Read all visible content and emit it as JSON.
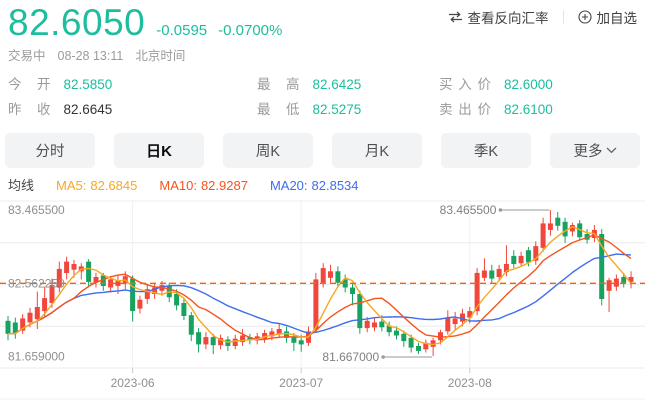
{
  "header": {
    "price": "82.6050",
    "change": "-0.0595",
    "change_pct": "-0.0700%",
    "reverse_rate_label": "查看反向汇率",
    "add_watch_label": "加自选",
    "status": "交易中",
    "datetime": "08-28 13:11",
    "timezone": "北京时间"
  },
  "stats": [
    {
      "label": "今　开",
      "value": "82.5850"
    },
    {
      "label": "最　高",
      "value": "82.6425"
    },
    {
      "label": "买 入 价",
      "value": "82.6000"
    },
    {
      "label": "昨　收",
      "value": "82.6645"
    },
    {
      "label": "最　低",
      "value": "82.5275"
    },
    {
      "label": "卖 出 价",
      "value": "82.6100"
    }
  ],
  "tabs": [
    {
      "label": "分时",
      "active": false
    },
    {
      "label": "日K",
      "active": true
    },
    {
      "label": "周K",
      "active": false
    },
    {
      "label": "月K",
      "active": false
    },
    {
      "label": "季K",
      "active": false
    },
    {
      "label": "更多",
      "active": false,
      "has_chevron": true
    }
  ],
  "ma_legend": {
    "title": "均线",
    "items": [
      {
        "label": "MA5:",
        "value": "82.6845",
        "color": "#f7a823"
      },
      {
        "label": "MA10:",
        "value": "82.9287",
        "color": "#f4541d"
      },
      {
        "label": "MA20:",
        "value": "82.8534",
        "color": "#3e6ef0"
      }
    ]
  },
  "colors": {
    "price_green": "#1dbd9e",
    "up": "#f0463c",
    "down": "#16a35f",
    "ma5": "#f7a823",
    "ma10": "#f4541d",
    "ma20": "#3e6ef0",
    "current_line": "#ff6000",
    "grid": "#ececec",
    "axis_text": "#8f8f8f"
  },
  "chart_data": {
    "type": "candlestick",
    "title": "日K candlestick chart with MA5/MA10/MA20 overlays",
    "y_axis_labels": [
      {
        "text": "83.465500",
        "value": 83.4655
      },
      {
        "text": "82.562250",
        "value": 82.56225
      },
      {
        "text": "81.659000",
        "value": 81.659
      }
    ],
    "x_axis_labels": [
      {
        "text": "2023-06",
        "candle_index": 17
      },
      {
        "text": "2023-07",
        "candle_index": 40
      },
      {
        "text": "2023-08",
        "candle_index": 63
      }
    ],
    "y_range": [
      81.659,
      83.4655
    ],
    "current_price_line_value": 82.56225,
    "annotations": [
      {
        "text": "83.465500",
        "value": 83.4655,
        "candle_index": 74,
        "anchor": "high"
      },
      {
        "text": "81.667000",
        "value": 81.667,
        "candle_index": 58,
        "anchor": "low"
      }
    ],
    "candles_ohlc": [
      [
        82.1,
        82.16,
        81.86,
        81.94
      ],
      [
        82.08,
        82.14,
        81.88,
        81.95
      ],
      [
        81.98,
        82.18,
        81.94,
        82.13
      ],
      [
        82.08,
        82.26,
        82.02,
        82.2
      ],
      [
        82.12,
        82.46,
        82.0,
        82.27
      ],
      [
        82.22,
        82.52,
        82.14,
        82.38
      ],
      [
        82.32,
        82.62,
        82.26,
        82.54
      ],
      [
        82.51,
        82.83,
        82.45,
        82.74
      ],
      [
        82.69,
        82.89,
        82.61,
        82.83
      ],
      [
        82.73,
        82.85,
        82.63,
        82.8
      ],
      [
        82.71,
        82.81,
        82.61,
        82.77
      ],
      [
        82.83,
        82.86,
        82.51,
        82.58
      ],
      [
        82.57,
        82.69,
        82.51,
        82.64
      ],
      [
        82.66,
        82.69,
        82.47,
        82.53
      ],
      [
        82.51,
        82.65,
        82.45,
        82.61
      ],
      [
        82.53,
        82.67,
        82.43,
        82.59
      ],
      [
        82.56,
        82.71,
        82.49,
        82.65
      ],
      [
        82.62,
        82.66,
        82.09,
        82.22
      ],
      [
        82.25,
        82.41,
        82.19,
        82.36
      ],
      [
        82.37,
        82.56,
        82.31,
        82.49
      ],
      [
        82.43,
        82.57,
        82.37,
        82.51
      ],
      [
        82.47,
        82.59,
        82.41,
        82.54
      ],
      [
        82.53,
        82.57,
        82.33,
        82.39
      ],
      [
        82.43,
        82.49,
        82.23,
        82.29
      ],
      [
        82.32,
        82.37,
        82.11,
        82.16
      ],
      [
        82.17,
        82.21,
        81.85,
        81.93
      ],
      [
        81.96,
        82.01,
        81.71,
        81.81
      ],
      [
        81.81,
        81.96,
        81.75,
        81.9
      ],
      [
        81.9,
        81.94,
        81.69,
        81.8
      ],
      [
        81.8,
        81.93,
        81.75,
        81.89
      ],
      [
        81.87,
        81.91,
        81.73,
        81.79
      ],
      [
        81.79,
        81.93,
        81.75,
        81.88
      ],
      [
        81.84,
        82.0,
        81.79,
        81.92
      ],
      [
        81.9,
        81.94,
        81.81,
        81.86
      ],
      [
        81.86,
        81.95,
        81.81,
        81.91
      ],
      [
        81.88,
        81.99,
        81.83,
        81.95
      ],
      [
        81.91,
        82.01,
        81.86,
        81.97
      ],
      [
        81.94,
        82.07,
        81.89,
        82.0
      ],
      [
        81.97,
        82.03,
        81.83,
        81.89
      ],
      [
        81.91,
        81.95,
        81.73,
        81.83
      ],
      [
        81.86,
        81.93,
        81.72,
        81.81
      ],
      [
        81.83,
        82.03,
        81.79,
        81.97
      ],
      [
        81.99,
        82.69,
        81.95,
        82.61
      ],
      [
        82.57,
        82.81,
        82.51,
        82.75
      ],
      [
        82.63,
        82.79,
        82.57,
        82.71
      ],
      [
        82.71,
        82.77,
        82.51,
        82.57
      ],
      [
        82.61,
        82.67,
        82.45,
        82.51
      ],
      [
        82.51,
        82.57,
        82.29,
        82.43
      ],
      [
        82.43,
        82.47,
        81.94,
        82.01
      ],
      [
        82.01,
        82.15,
        81.96,
        82.1
      ],
      [
        82.02,
        82.13,
        81.97,
        82.08
      ],
      [
        82.09,
        82.17,
        81.97,
        82.02
      ],
      [
        82.04,
        82.09,
        81.91,
        81.96
      ],
      [
        81.98,
        82.03,
        81.87,
        81.92
      ],
      [
        81.94,
        81.98,
        81.78,
        81.85
      ],
      [
        81.89,
        81.93,
        81.71,
        81.77
      ],
      [
        81.79,
        81.83,
        81.69,
        81.73
      ],
      [
        81.75,
        81.87,
        81.71,
        81.83
      ],
      [
        81.78,
        81.89,
        81.667,
        81.86
      ],
      [
        81.86,
        81.99,
        81.81,
        81.96
      ],
      [
        81.97,
        82.23,
        81.93,
        82.14
      ],
      [
        82.06,
        82.21,
        81.99,
        82.13
      ],
      [
        82.09,
        82.25,
        82.03,
        82.19
      ],
      [
        82.14,
        82.27,
        82.07,
        82.22
      ],
      [
        82.22,
        82.75,
        82.17,
        82.69
      ],
      [
        82.63,
        82.87,
        82.59,
        82.72
      ],
      [
        82.72,
        82.79,
        82.57,
        82.62
      ],
      [
        82.64,
        82.79,
        82.59,
        82.74
      ],
      [
        82.7,
        83.03,
        82.65,
        82.8
      ],
      [
        82.9,
        82.97,
        82.75,
        82.8
      ],
      [
        82.81,
        82.95,
        82.77,
        82.9
      ],
      [
        82.97,
        83.01,
        82.77,
        82.82
      ],
      [
        82.84,
        83.08,
        82.79,
        83.02
      ],
      [
        83.0,
        83.37,
        82.95,
        83.3
      ],
      [
        83.22,
        83.4655,
        83.15,
        83.3
      ],
      [
        83.37,
        83.44,
        83.21,
        83.27
      ],
      [
        83.32,
        83.37,
        83.06,
        83.14
      ],
      [
        83.2,
        83.31,
        83.14,
        83.28
      ],
      [
        83.3,
        83.34,
        83.09,
        83.13
      ],
      [
        83.17,
        83.23,
        83.05,
        83.1
      ],
      [
        83.12,
        83.28,
        83.07,
        83.22
      ],
      [
        83.17,
        83.23,
        82.29,
        82.37
      ],
      [
        82.47,
        82.63,
        82.21,
        82.6
      ],
      [
        82.52,
        82.67,
        82.47,
        82.62
      ],
      [
        82.64,
        82.69,
        82.51,
        82.57
      ],
      [
        82.58,
        82.71,
        82.5,
        82.64
      ]
    ]
  }
}
